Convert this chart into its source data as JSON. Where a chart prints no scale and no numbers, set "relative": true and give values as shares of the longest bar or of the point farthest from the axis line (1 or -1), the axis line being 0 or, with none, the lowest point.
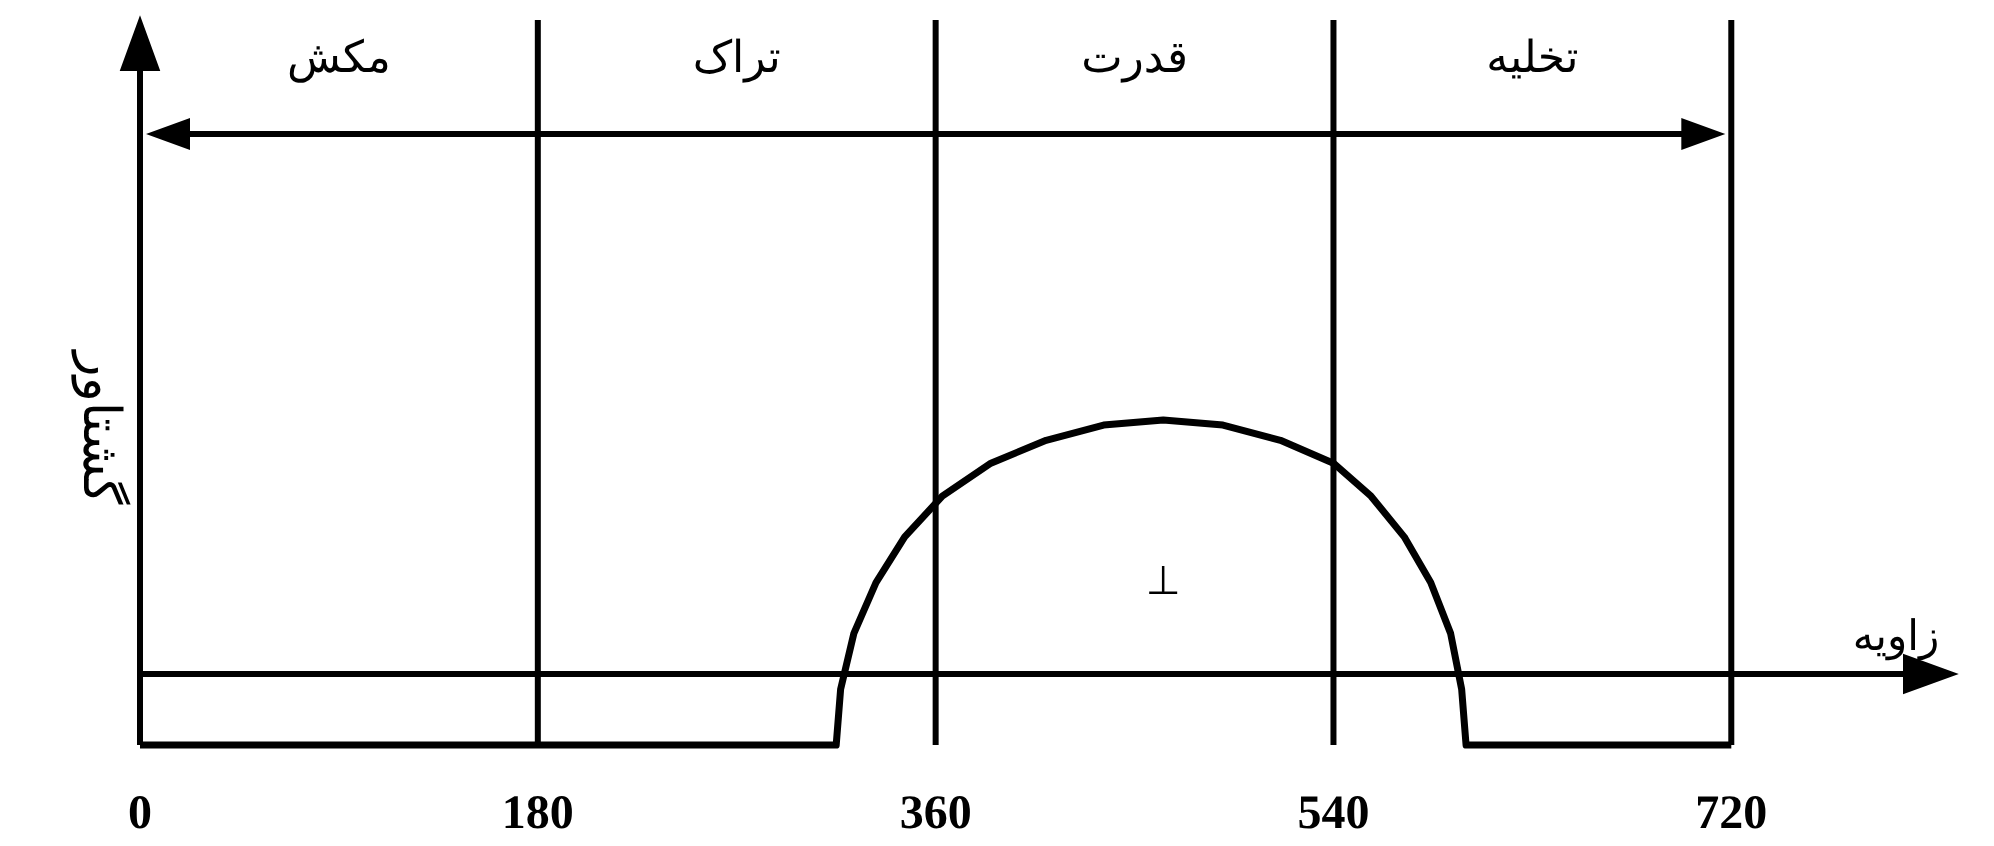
{
  "chart_data": {
    "type": "line",
    "relative": true,
    "xlabel": "زاویه",
    "ylabel": "گشتاور",
    "xlim": [
      0,
      790
    ],
    "xticks": [
      0,
      180,
      360,
      540,
      720
    ],
    "series": [
      {
        "color": "#000000",
        "x": [
          0,
          315,
          317,
          323,
          333,
          346,
          363,
          385,
          410,
          436,
          463,
          490,
          516,
          540,
          557,
          572,
          584,
          593,
          598,
          600,
          720
        ],
        "values": [
          -0.28,
          -0.28,
          -0.06,
          0.16,
          0.36,
          0.54,
          0.7,
          0.83,
          0.92,
          0.98,
          1,
          0.98,
          0.92,
          0.83,
          0.7,
          0.54,
          0.36,
          0.16,
          -0.06,
          -0.28,
          -0.28
        ]
      }
    ],
    "ref_lines": [
      {
        "axis": "x",
        "value": 180,
        "color": "#000000"
      },
      {
        "axis": "x",
        "value": 360,
        "color": "#000000"
      },
      {
        "axis": "x",
        "value": 540,
        "color": "#000000"
      },
      {
        "axis": "x",
        "value": 720,
        "color": "#000000"
      }
    ],
    "annotations": [
      "مکش",
      "تراک",
      "قدرت",
      "تخلیه",
      "⊥"
    ],
    "line_style": "solid",
    "marker": "none"
  }
}
